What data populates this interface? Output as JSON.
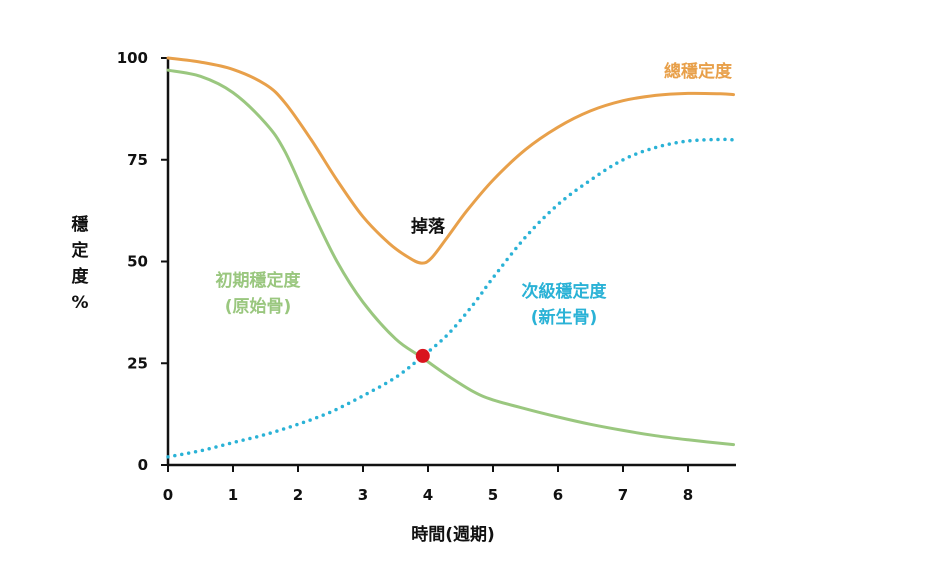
{
  "chart_data": {
    "type": "line",
    "xlabel": "時間(週期)",
    "ylabel_chars": [
      "穩",
      "定",
      "度",
      "%"
    ],
    "xlim": [
      0,
      8.7
    ],
    "ylim": [
      0,
      100
    ],
    "xticks": [
      0,
      1,
      2,
      3,
      4,
      5,
      6,
      7,
      8
    ],
    "yticks": [
      0,
      25,
      50,
      75,
      100
    ],
    "grid": false,
    "series": [
      {
        "name": "總穩定度",
        "color": "#e8a04a",
        "style": "solid",
        "points": [
          [
            0,
            100
          ],
          [
            0.5,
            99
          ],
          [
            1,
            97.2
          ],
          [
            1.5,
            93.5
          ],
          [
            1.8,
            89
          ],
          [
            2.2,
            80
          ],
          [
            2.6,
            70
          ],
          [
            3,
            61
          ],
          [
            3.4,
            54.5
          ],
          [
            3.7,
            51
          ],
          [
            3.9,
            49.6
          ],
          [
            4.05,
            50.8
          ],
          [
            4.3,
            56
          ],
          [
            4.6,
            62.5
          ],
          [
            5,
            70
          ],
          [
            5.5,
            77.5
          ],
          [
            6,
            83
          ],
          [
            6.5,
            87
          ],
          [
            7,
            89.5
          ],
          [
            7.5,
            90.8
          ],
          [
            8,
            91.3
          ],
          [
            8.5,
            91.2
          ],
          [
            8.7,
            91
          ]
        ]
      },
      {
        "name": "初期穩定度",
        "color": "#9ac77f",
        "style": "solid",
        "points": [
          [
            0,
            97
          ],
          [
            0.5,
            95.5
          ],
          [
            1,
            91.5
          ],
          [
            1.5,
            84
          ],
          [
            1.8,
            77
          ],
          [
            2.2,
            63
          ],
          [
            2.6,
            50
          ],
          [
            3,
            40
          ],
          [
            3.5,
            31
          ],
          [
            3.9,
            26.5
          ],
          [
            4.3,
            22
          ],
          [
            4.7,
            18
          ],
          [
            5,
            16
          ],
          [
            5.5,
            13.8
          ],
          [
            6,
            11.8
          ],
          [
            6.5,
            10
          ],
          [
            7,
            8.5
          ],
          [
            7.5,
            7.2
          ],
          [
            8,
            6.2
          ],
          [
            8.7,
            5
          ]
        ]
      },
      {
        "name": "次級穩定度",
        "color": "#2ab2d6",
        "style": "dotted",
        "points": [
          [
            0,
            2
          ],
          [
            0.5,
            3.5
          ],
          [
            1,
            5.5
          ],
          [
            1.5,
            7.5
          ],
          [
            2,
            10
          ],
          [
            2.5,
            13
          ],
          [
            3,
            17
          ],
          [
            3.5,
            21.5
          ],
          [
            3.9,
            26.5
          ],
          [
            4.3,
            32
          ],
          [
            4.7,
            39.5
          ],
          [
            5,
            46
          ],
          [
            5.5,
            56
          ],
          [
            6,
            64
          ],
          [
            6.5,
            70
          ],
          [
            7,
            75
          ],
          [
            7.5,
            78
          ],
          [
            8,
            79.6
          ],
          [
            8.5,
            80
          ],
          [
            8.7,
            79.9
          ]
        ]
      }
    ],
    "crossing_point": {
      "x": 3.92,
      "y": 26.8,
      "color": "#d9141e"
    },
    "annotations": {
      "total": "總穩定度",
      "drop": "掉落",
      "primary_line1": "初期穩定度",
      "primary_line2": "(原始骨)",
      "secondary_line1": "次級穩定度",
      "secondary_line2": "(新生骨)"
    }
  }
}
